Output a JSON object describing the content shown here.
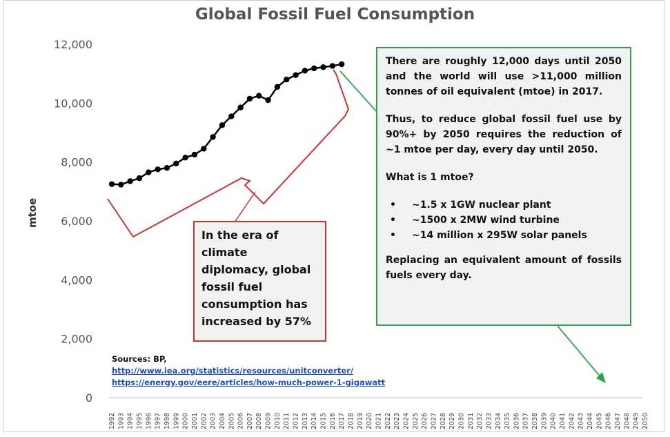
{
  "chart_data": {
    "type": "line",
    "title": "Global Fossil Fuel Consumption",
    "ylabel": "mtoe",
    "xlabel": "",
    "ylim": [
      0,
      12000
    ],
    "yticks": [
      0,
      2000,
      4000,
      6000,
      8000,
      10000,
      12000
    ],
    "ytick_labels": [
      "0",
      "2,000",
      "4,000",
      "6,000",
      "8,000",
      "10,000",
      "12,000"
    ],
    "xlim": [
      1992,
      2050
    ],
    "xtick_labels": [
      "1992",
      "1993",
      "1994",
      "1995",
      "1996",
      "1997",
      "1998",
      "1999",
      "2000",
      "2001",
      "2002",
      "2003",
      "2004",
      "2005",
      "2006",
      "2007",
      "2008",
      "2009",
      "2010",
      "2011",
      "2012",
      "2013",
      "2014",
      "2015",
      "2016",
      "2017",
      "2018",
      "2019",
      "2020",
      "2021",
      "2022",
      "2023",
      "2024",
      "2025",
      "2026",
      "2027",
      "2028",
      "2029",
      "2030",
      "2031",
      "2032",
      "2033",
      "2034",
      "2035",
      "2036",
      "2037",
      "2038",
      "2039",
      "2040",
      "2041",
      "2042",
      "2043",
      "2044",
      "2045",
      "2046",
      "2047",
      "2048",
      "2049",
      "2050"
    ],
    "grid": false,
    "series": [
      {
        "color": "#000000",
        "x": [
          1992,
          1993,
          1994,
          1995,
          1996,
          1997,
          1998,
          1999,
          2000,
          2001,
          2002,
          2003,
          2004,
          2005,
          2006,
          2007,
          2008,
          2009,
          2010,
          2011,
          2012,
          2013,
          2014,
          2015,
          2016,
          2017
        ],
        "values": [
          7250,
          7230,
          7350,
          7450,
          7650,
          7750,
          7800,
          7950,
          8150,
          8250,
          8450,
          8850,
          9250,
          9550,
          9850,
          10150,
          10250,
          10100,
          10550,
          10800,
          10950,
          11100,
          11180,
          11220,
          11260,
          11320
        ]
      }
    ]
  },
  "info_box": {
    "para1": "There are roughly 12,000 days until 2050 and the world will use >11,000 million tonnes of oil equivalent (mtoe) in 2017.",
    "para2": "Thus, to reduce global fossil fuel use by 90%+ by 2050 requires the reduction of ~1 mtoe per day, every day until 2050.",
    "question": "What is 1 mtoe?",
    "bullets": [
      "~1.5 x 1GW nuclear plant",
      "~1500 x 2MW wind turbine",
      "~14 million x 295W solar panels"
    ],
    "para3": "Replacing an equivalent amount of fossils fuels every day.",
    "border_color": "#2ea44f"
  },
  "callout": {
    "text": "In the era of climate diplomacy, global fossil fuel consumption has increased by 57%",
    "border_color": "#cc3333"
  },
  "sources": {
    "label": "Sources: BP,",
    "link1": "http://www.iea.org/statistics/resources/unitconverter/",
    "link2": " https://energy.gov/eere/articles/how-much-power-1-gigawatt"
  }
}
